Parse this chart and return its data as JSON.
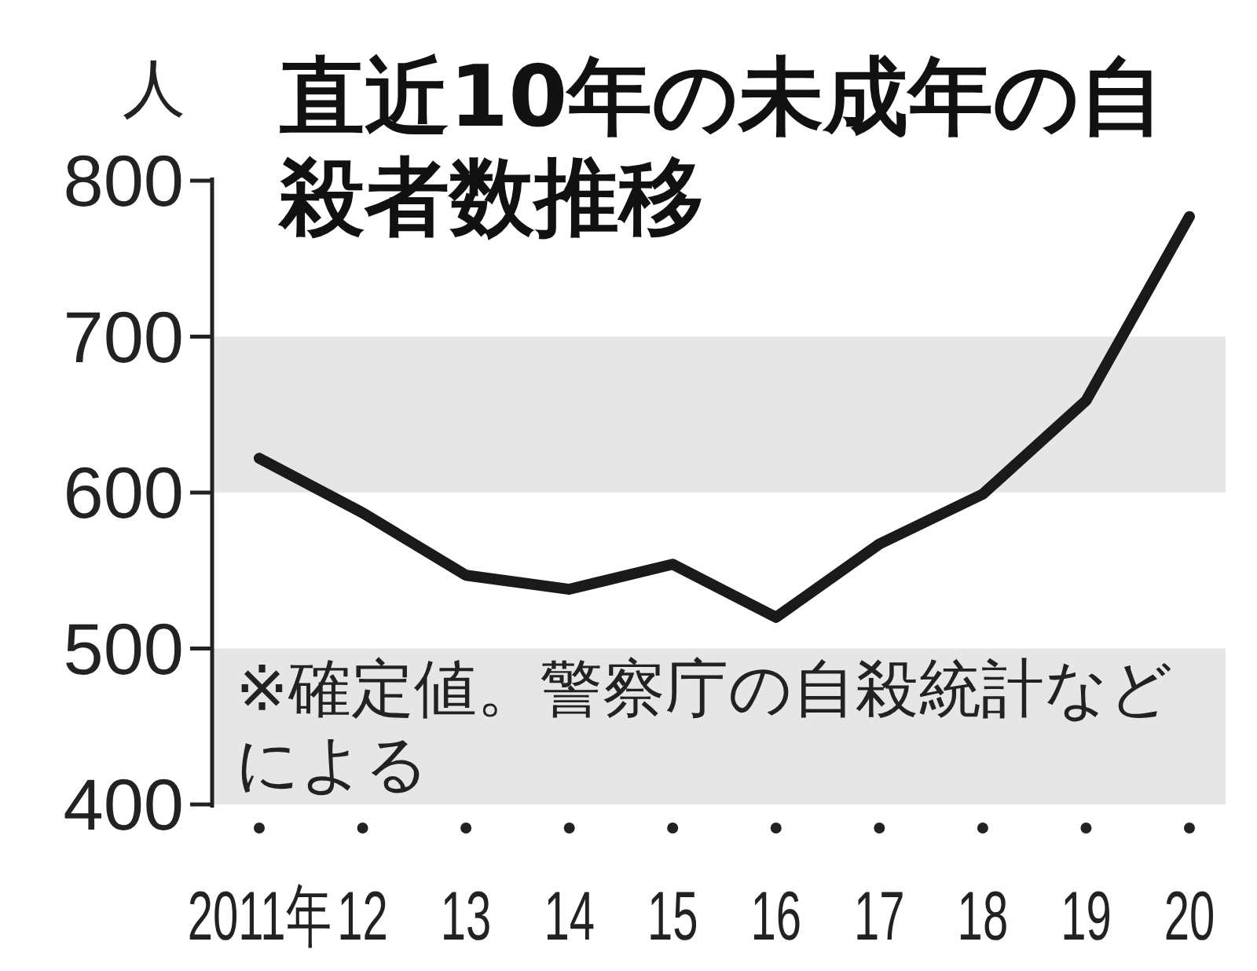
{
  "chart_data": {
    "type": "line",
    "title": "直近10年の未成年の自殺者数推移",
    "ylabel": "人",
    "categories": [
      "2011年",
      "12",
      "13",
      "14",
      "15",
      "16",
      "17",
      "18",
      "19",
      "20"
    ],
    "series": [
      {
        "color": "#1a1a1a",
        "values": [
          622,
          587,
          547,
          538,
          554,
          520,
          567,
          599,
          659,
          777
        ]
      }
    ],
    "ylim": [
      400,
      800
    ],
    "yticks": [
      400,
      500,
      600,
      700,
      800
    ],
    "bands": [
      {
        "axis": "y",
        "from": 400,
        "to": 500,
        "color": "#e6e6e6"
      },
      {
        "axis": "y",
        "from": 600,
        "to": 700,
        "color": "#e6e6e6"
      }
    ],
    "annotations": [
      "※確定値。警察庁の自殺統計などによる"
    ],
    "grid": false,
    "marker": "none",
    "line_style": "solid"
  }
}
